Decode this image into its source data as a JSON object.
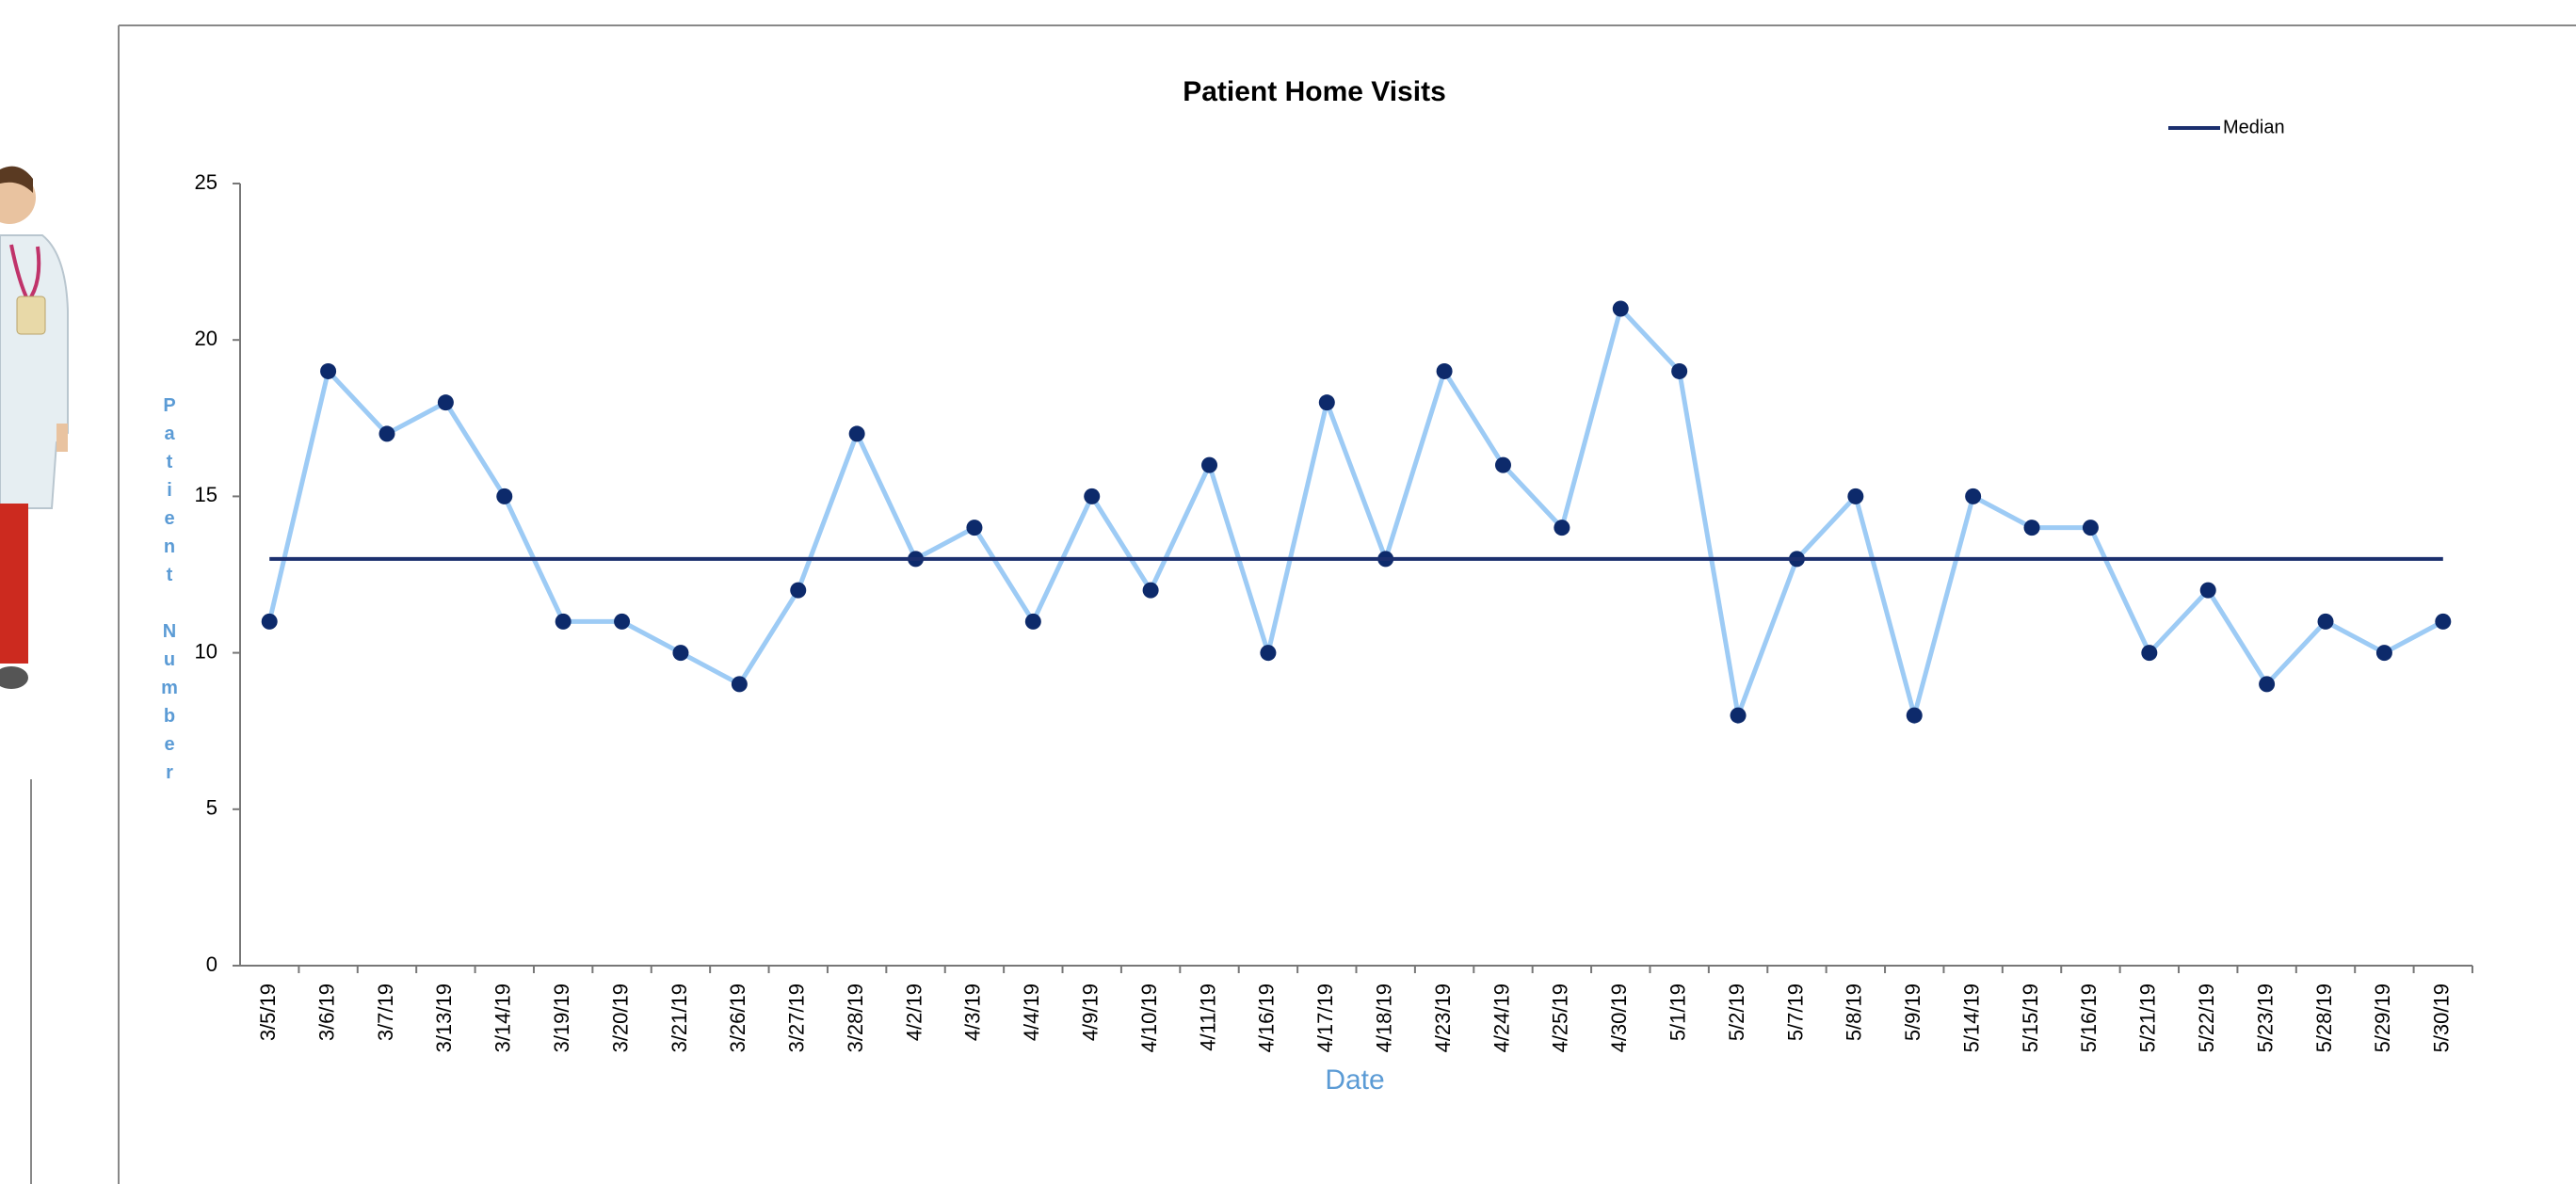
{
  "chart_data": {
    "type": "line",
    "title": "Patient Home Visits",
    "xlabel": "Date",
    "ylabel": "Patient Number",
    "categories": [
      "3/5/19",
      "3/6/19",
      "3/7/19",
      "3/13/19",
      "3/14/19",
      "3/19/19",
      "3/20/19",
      "3/21/19",
      "3/26/19",
      "3/27/19",
      "3/28/19",
      "4/2/19",
      "4/3/19",
      "4/4/19",
      "4/9/19",
      "4/10/19",
      "4/11/19",
      "4/16/19",
      "4/17/19",
      "4/18/19",
      "4/23/19",
      "4/24/19",
      "4/25/19",
      "4/30/19",
      "5/1/19",
      "5/2/19",
      "5/7/19",
      "5/8/19",
      "5/9/19",
      "5/14/19",
      "5/15/19",
      "5/16/19",
      "5/21/19",
      "5/22/19",
      "5/23/19",
      "5/28/19",
      "5/29/19",
      "5/30/19"
    ],
    "series": [
      {
        "color": "#9dcbf5",
        "marker_color": "#0d2a6b",
        "values": [
          11,
          19,
          17,
          18,
          15,
          11,
          11,
          10,
          9,
          12,
          17,
          13,
          14,
          11,
          15,
          12,
          16,
          10,
          18,
          13,
          19,
          16,
          14,
          21,
          19,
          8,
          13,
          15,
          8,
          15,
          14,
          14,
          10,
          12,
          9,
          11,
          10,
          11
        ]
      },
      {
        "name": "Median",
        "color": "#1b2f6e",
        "values": [
          13,
          13,
          13,
          13,
          13,
          13,
          13,
          13,
          13,
          13,
          13,
          13,
          13,
          13,
          13,
          13,
          13,
          13,
          13,
          13,
          13,
          13,
          13,
          13,
          13,
          13,
          13,
          13,
          13,
          13,
          13,
          13,
          13,
          13,
          13,
          13,
          13,
          13
        ]
      }
    ],
    "ylim": [
      0,
      25
    ],
    "yticks": [
      0,
      5,
      10,
      15,
      20,
      25
    ],
    "grid": false,
    "legend": "top-right"
  }
}
